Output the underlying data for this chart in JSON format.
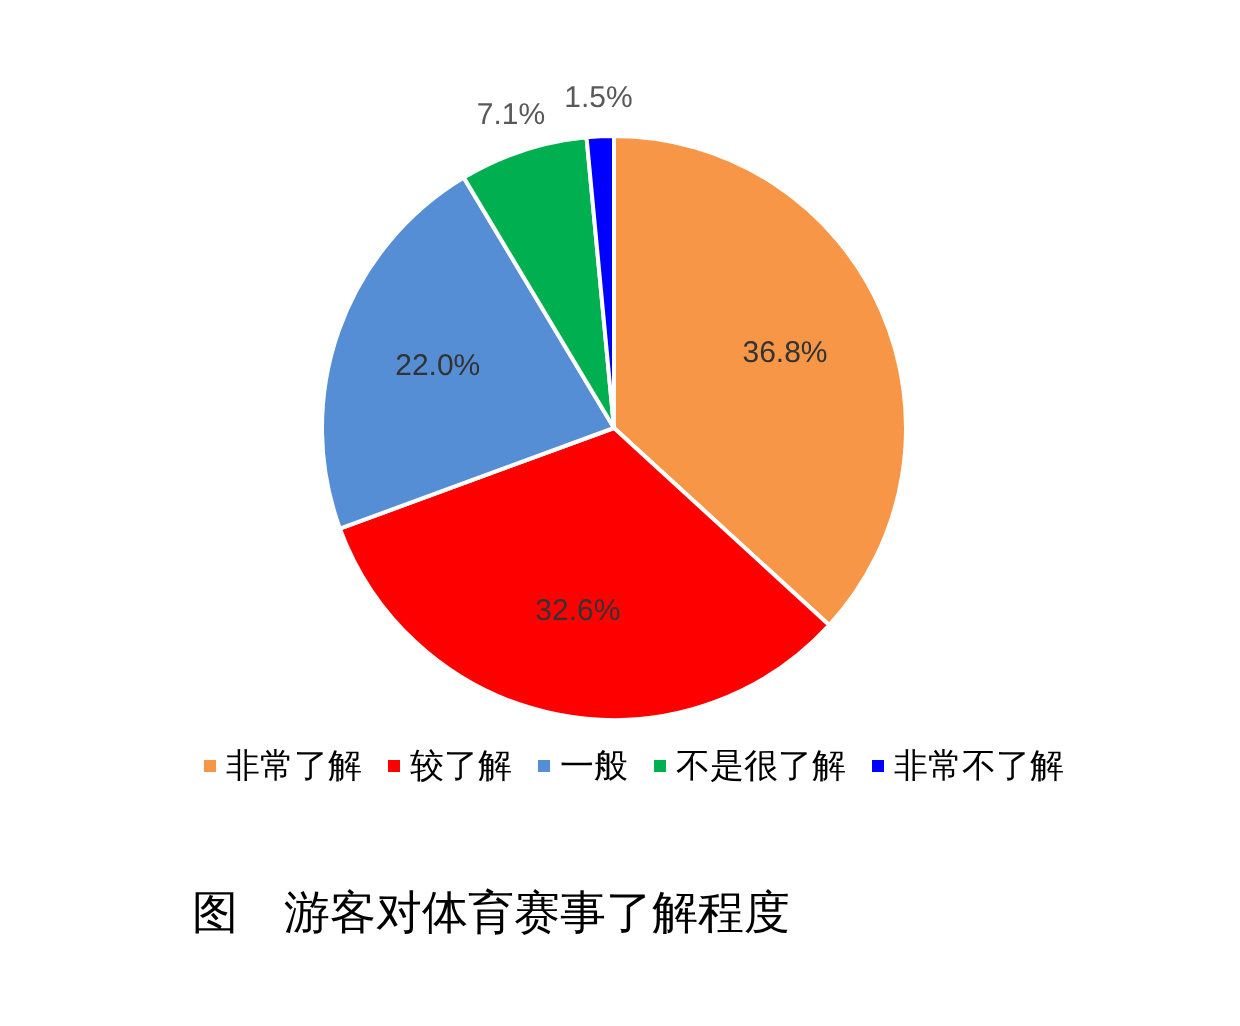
{
  "chart_data": {
    "type": "pie",
    "title": "图　游客对体育赛事了解程度",
    "categories": [
      "非常了解",
      "较了解",
      "一般",
      "不是很了解",
      "非常不了解"
    ],
    "values": [
      36.8,
      32.6,
      22.0,
      7.1,
      1.5
    ],
    "value_labels": [
      "36.8%",
      "32.6%",
      "22.0%",
      "7.1%",
      "1.5%"
    ],
    "colors": [
      "#f79646",
      "#ff0000",
      "#558ed5",
      "#00b050",
      "#0000ff"
    ],
    "legend": "bottom"
  }
}
